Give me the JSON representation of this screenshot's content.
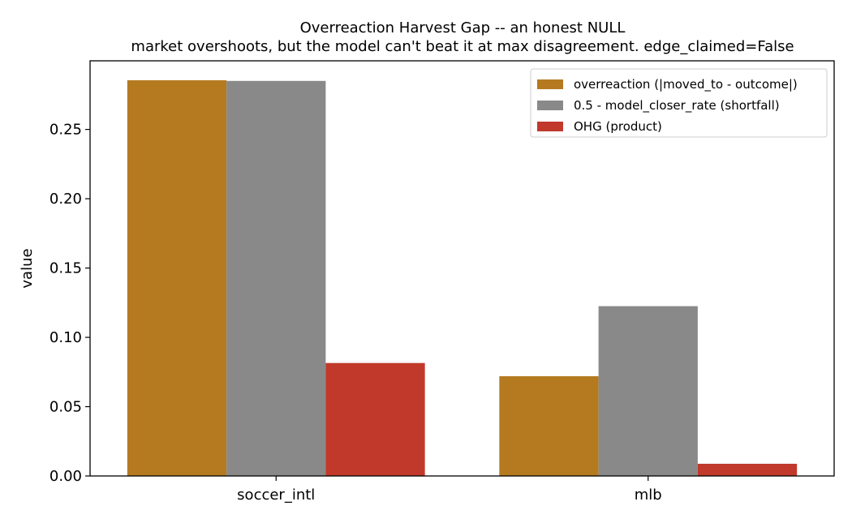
{
  "chart_data": {
    "type": "bar",
    "title": "Overreaction Harvest Gap -- an honest NULL",
    "subtitle": "market overshoots, but the model can't beat it at max disagreement. edge_claimed=False",
    "xlabel": "",
    "ylabel": "value",
    "categories": [
      "soccer_intl",
      "mlb"
    ],
    "series": [
      {
        "name": "overreaction (|moved_to - outcome|)",
        "color": "#b57a20",
        "values": [
          0.2855,
          0.072
        ]
      },
      {
        "name": "0.5 - model_closer_rate (shortfall)",
        "color": "#898989",
        "values": [
          0.285,
          0.1225
        ]
      },
      {
        "name": "OHG (product)",
        "color": "#c0392b",
        "values": [
          0.0815,
          0.0088
        ]
      }
    ],
    "ylim": [
      0,
      0.2995
    ],
    "yticks": [
      "0.00",
      "0.05",
      "0.10",
      "0.15",
      "0.20",
      "0.25"
    ],
    "ytick_values": [
      0,
      0.05,
      0.1,
      0.15,
      0.2,
      0.25
    ],
    "grid": false,
    "legend_position": "top-right"
  }
}
